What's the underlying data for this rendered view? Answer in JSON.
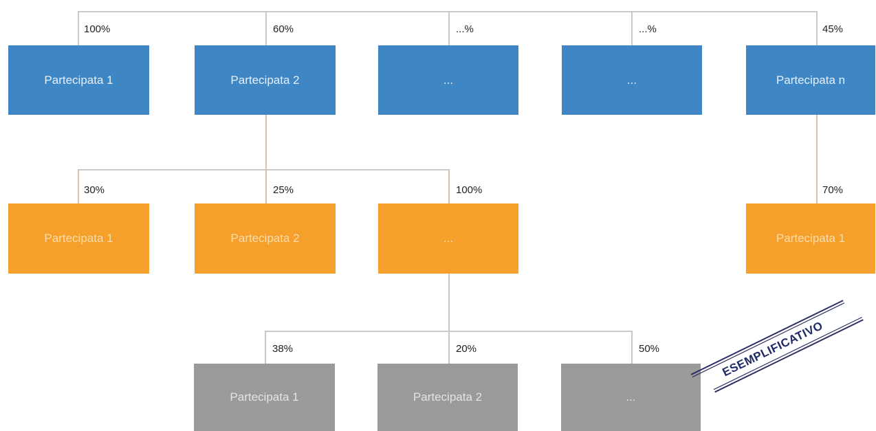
{
  "level1": [
    {
      "pct": "100%",
      "label": "Partecipata 1"
    },
    {
      "pct": "60%",
      "label": "Partecipata 2"
    },
    {
      "pct": "...%",
      "label": "..."
    },
    {
      "pct": "...%",
      "label": "..."
    },
    {
      "pct": "45%",
      "label": "Partecipata n"
    }
  ],
  "level2": [
    {
      "pct": "30%",
      "label": "Partecipata 1"
    },
    {
      "pct": "25%",
      "label": "Partecipata 2"
    },
    {
      "pct": "100%",
      "label": "..."
    },
    {
      "pct": "70%",
      "label": "Partecipata 1"
    }
  ],
  "level3": [
    {
      "pct": "38%",
      "label": "Partecipata 1"
    },
    {
      "pct": "20%",
      "label": "Partecipata 2"
    },
    {
      "pct": "50%",
      "label": "..."
    }
  ],
  "stamp": {
    "text": "ESEMPLIFICATIVO"
  },
  "colors": {
    "level1": "#3e86c4",
    "level2": "#f5a02a",
    "level3": "#9b9a99",
    "connector": "#c9c9c9"
  }
}
